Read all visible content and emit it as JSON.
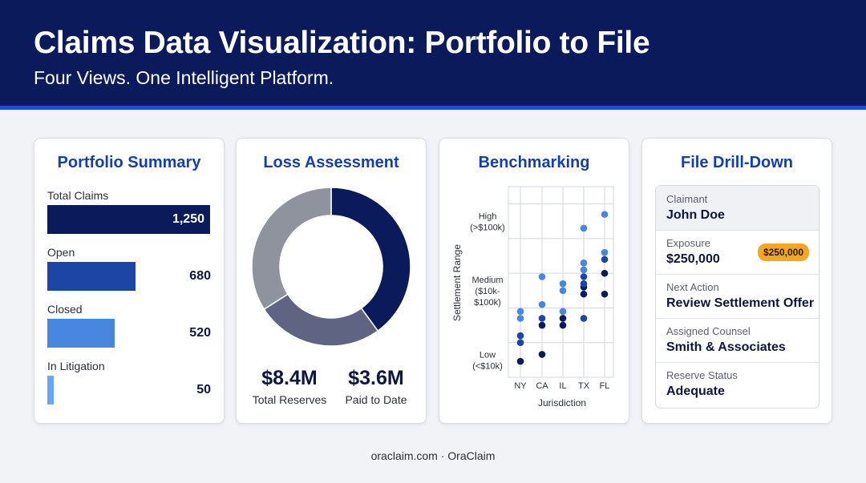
{
  "header": {
    "title": "Claims Data Visualization: Portfolio to File",
    "subtitle": "Four Views. One Intelligent Platform."
  },
  "portfolio": {
    "title": "Portfolio Summary",
    "items": [
      {
        "label": "Total Claims",
        "value": "1,250",
        "color": "#0b1a5a"
      },
      {
        "label": "Open",
        "value": "680",
        "color": "#1c45a6"
      },
      {
        "label": "Closed",
        "value": "520",
        "color": "#4887e0"
      },
      {
        "label": "In Litigation",
        "value": "50",
        "color": "#6aa7ee"
      }
    ]
  },
  "loss": {
    "title": "Loss Assessment",
    "total_reserves": {
      "value": "$8.4M",
      "label": "Total Reserves"
    },
    "paid_to_date": {
      "value": "$3.6M",
      "label": "Paid to Date"
    }
  },
  "benchmarking": {
    "title": "Benchmarking",
    "xlabel": "Jurisdiction",
    "ylabel": "Settlement Range"
  },
  "drilldown": {
    "title": "File Drill-Down",
    "rows": [
      {
        "label": "Claimant",
        "value": "John Doe"
      },
      {
        "label": "Exposure",
        "value": "$250,000",
        "badge": "$250,000"
      },
      {
        "label": "Next Action",
        "value": "Review Settlement Offer"
      },
      {
        "label": "Assigned Counsel",
        "value": "Smith & Associates"
      },
      {
        "label": "Reserve Status",
        "value": "Adequate"
      }
    ]
  },
  "footer": {
    "text": "oraclaim.com · OraClaim"
  },
  "chart_data": [
    {
      "type": "bar",
      "orientation": "horizontal",
      "title": "Portfolio Summary",
      "categories": [
        "Total Claims",
        "Open",
        "Closed",
        "In Litigation"
      ],
      "values": [
        1250,
        680,
        520,
        50
      ],
      "colors": [
        "#0b1a5a",
        "#1c45a6",
        "#4887e0",
        "#6aa7ee"
      ]
    },
    {
      "type": "pie",
      "variant": "donut",
      "title": "Loss Assessment",
      "slices": [
        {
          "value": 0.4,
          "color": "#0b1a5a"
        },
        {
          "value": 0.26,
          "color": "#5f6483"
        },
        {
          "value": 0.34,
          "color": "#8f939e"
        }
      ]
    },
    {
      "type": "scatter",
      "title": "Benchmarking",
      "xlabel": "Jurisdiction",
      "ylabel": "Settlement Range",
      "categories": [
        "NY",
        "CA",
        "IL",
        "TX",
        "FL"
      ],
      "y_ticks": [
        {
          "value": 1,
          "lines": [
            "Low",
            "(<$10k)"
          ]
        },
        {
          "value": 2,
          "lines": [
            "Medium",
            "($10k-",
            "$100k)"
          ]
        },
        {
          "value": 3,
          "lines": [
            "High",
            "(>$100k)"
          ]
        }
      ],
      "ylim": [
        0.75,
        3.5
      ],
      "grid": true,
      "points": [
        {
          "x": "NY",
          "y": 0.98,
          "color": "#0b1a5a"
        },
        {
          "x": "NY",
          "y": 1.25,
          "color": "#1c45a6"
        },
        {
          "x": "NY",
          "y": 1.35,
          "color": "#1c45a6"
        },
        {
          "x": "NY",
          "y": 1.6,
          "color": "#4887e0"
        },
        {
          "x": "NY",
          "y": 1.7,
          "color": "#4887e0"
        },
        {
          "x": "CA",
          "y": 1.08,
          "color": "#0b1a5a"
        },
        {
          "x": "CA",
          "y": 1.5,
          "color": "#0b1a5a"
        },
        {
          "x": "CA",
          "y": 1.6,
          "color": "#1c45a6"
        },
        {
          "x": "CA",
          "y": 1.8,
          "color": "#4887e0"
        },
        {
          "x": "CA",
          "y": 2.2,
          "color": "#4887e0"
        },
        {
          "x": "IL",
          "y": 1.5,
          "color": "#0b1a5a"
        },
        {
          "x": "IL",
          "y": 1.6,
          "color": "#0b1a5a"
        },
        {
          "x": "IL",
          "y": 1.7,
          "color": "#4887e0"
        },
        {
          "x": "IL",
          "y": 2.0,
          "color": "#4887e0"
        },
        {
          "x": "IL",
          "y": 2.1,
          "color": "#4887e0"
        },
        {
          "x": "TX",
          "y": 1.6,
          "color": "#1c45a6"
        },
        {
          "x": "TX",
          "y": 1.95,
          "color": "#0b1a5a"
        },
        {
          "x": "TX",
          "y": 2.05,
          "color": "#0b1a5a"
        },
        {
          "x": "TX",
          "y": 2.1,
          "color": "#1c45a6"
        },
        {
          "x": "TX",
          "y": 2.2,
          "color": "#1c45a6"
        },
        {
          "x": "TX",
          "y": 2.3,
          "color": "#4887e0"
        },
        {
          "x": "TX",
          "y": 2.4,
          "color": "#4887e0"
        },
        {
          "x": "TX",
          "y": 2.9,
          "color": "#4887e0"
        },
        {
          "x": "FL",
          "y": 1.95,
          "color": "#0b1a5a"
        },
        {
          "x": "FL",
          "y": 2.25,
          "color": "#0b1a5a"
        },
        {
          "x": "FL",
          "y": 2.45,
          "color": "#1c45a6"
        },
        {
          "x": "FL",
          "y": 2.55,
          "color": "#4887e0"
        },
        {
          "x": "FL",
          "y": 3.1,
          "color": "#4887e0"
        }
      ]
    }
  ]
}
